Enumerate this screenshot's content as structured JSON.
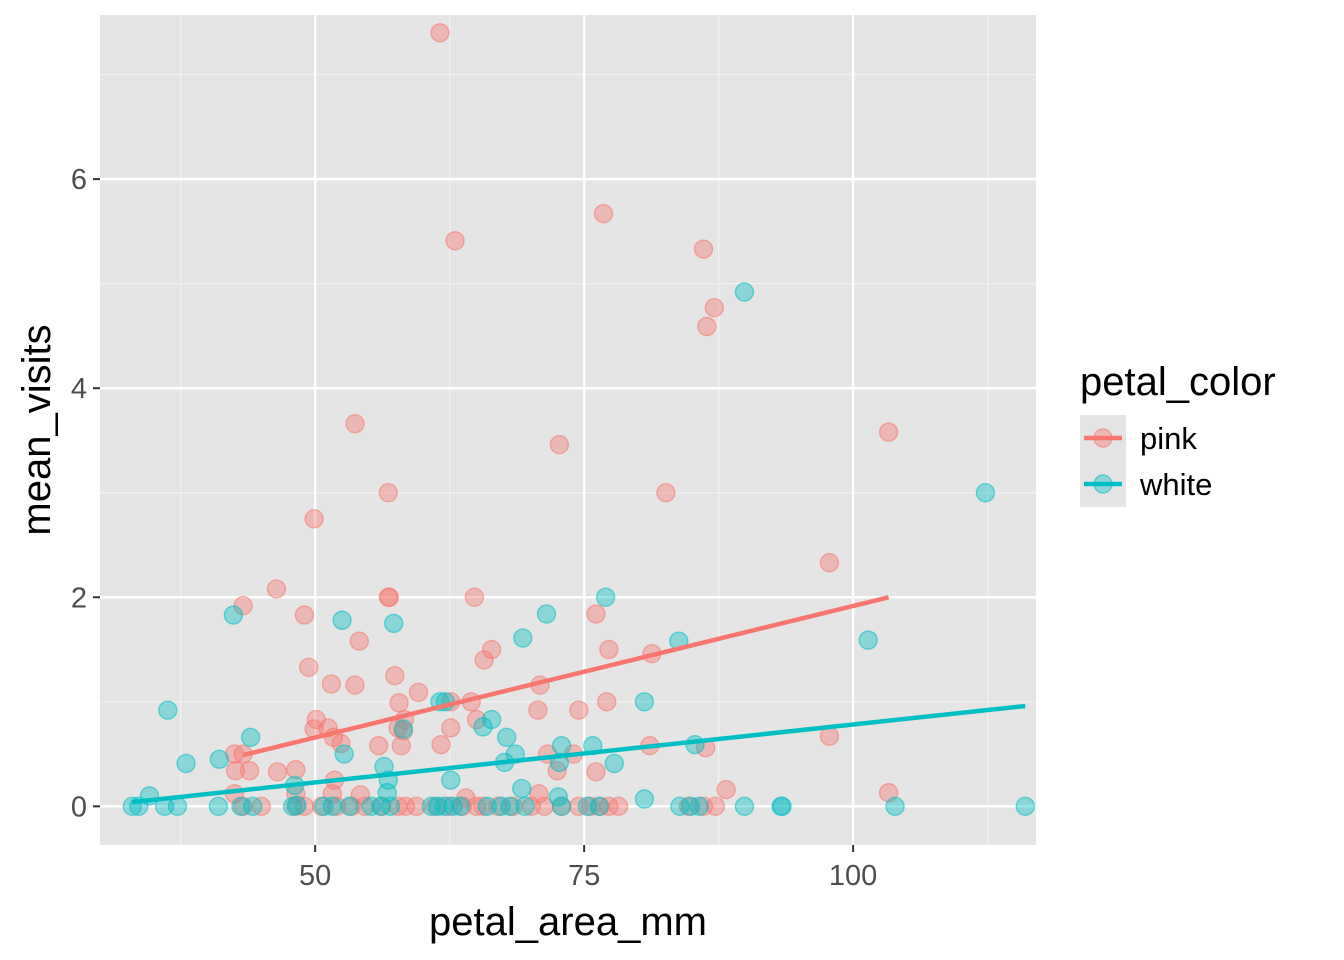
{
  "chart_data": {
    "type": "scatter",
    "xlabel": "petal_area_mm",
    "ylabel": "mean_visits",
    "xlim": [
      30,
      117
    ],
    "ylim": [
      -0.37,
      7.57
    ],
    "x_ticks": [
      50,
      75,
      100
    ],
    "y_ticks": [
      0,
      2,
      4,
      6
    ],
    "x_minor": [
      37.5,
      62.5,
      87.5,
      112.5
    ],
    "y_minor": [
      1,
      3,
      5,
      7
    ],
    "grid": true,
    "panel_background": "#e5e5e5",
    "legend": {
      "title": "petal_color",
      "placement": "right"
    },
    "series": [
      {
        "name": "pink",
        "color": "#f8766d",
        "points": [
          [
            61.6,
            7.4
          ],
          [
            76.8,
            5.67
          ],
          [
            63.0,
            5.41
          ],
          [
            86.1,
            5.33
          ],
          [
            87.1,
            4.77
          ],
          [
            86.4,
            4.59
          ],
          [
            53.7,
            3.66
          ],
          [
            103.3,
            3.58
          ],
          [
            72.7,
            3.46
          ],
          [
            56.8,
            3.0
          ],
          [
            82.6,
            3.0
          ],
          [
            49.9,
            2.75
          ],
          [
            97.8,
            2.33
          ],
          [
            46.4,
            2.08
          ],
          [
            56.8,
            2.0
          ],
          [
            56.9,
            2.0
          ],
          [
            64.8,
            2.0
          ],
          [
            43.3,
            1.92
          ],
          [
            76.1,
            1.84
          ],
          [
            49.0,
            1.83
          ],
          [
            54.1,
            1.58
          ],
          [
            77.3,
            1.5
          ],
          [
            66.4,
            1.5
          ],
          [
            81.3,
            1.46
          ],
          [
            65.7,
            1.4
          ],
          [
            49.4,
            1.33
          ],
          [
            57.4,
            1.25
          ],
          [
            51.5,
            1.17
          ],
          [
            53.7,
            1.16
          ],
          [
            70.9,
            1.16
          ],
          [
            59.6,
            1.09
          ],
          [
            62.6,
            1.0
          ],
          [
            64.5,
            1.0
          ],
          [
            77.1,
            1.0
          ],
          [
            57.8,
            0.99
          ],
          [
            70.7,
            0.92
          ],
          [
            74.5,
            0.92
          ],
          [
            50.1,
            0.83
          ],
          [
            58.3,
            0.83
          ],
          [
            65.0,
            0.83
          ],
          [
            51.2,
            0.75
          ],
          [
            57.7,
            0.75
          ],
          [
            62.6,
            0.75
          ],
          [
            49.9,
            0.74
          ],
          [
            58.2,
            0.72
          ],
          [
            51.7,
            0.66
          ],
          [
            97.8,
            0.67
          ],
          [
            52.4,
            0.6
          ],
          [
            55.9,
            0.58
          ],
          [
            61.7,
            0.59
          ],
          [
            58.0,
            0.58
          ],
          [
            81.1,
            0.58
          ],
          [
            86.3,
            0.56
          ],
          [
            42.5,
            0.5
          ],
          [
            43.3,
            0.5
          ],
          [
            71.6,
            0.5
          ],
          [
            74.0,
            0.5
          ],
          [
            48.2,
            0.35
          ],
          [
            46.5,
            0.33
          ],
          [
            42.6,
            0.34
          ],
          [
            72.5,
            0.34
          ],
          [
            76.1,
            0.33
          ],
          [
            43.9,
            0.34
          ],
          [
            51.8,
            0.25
          ],
          [
            88.2,
            0.16
          ],
          [
            103.3,
            0.13
          ],
          [
            42.5,
            0.12
          ],
          [
            48.2,
            0.12
          ],
          [
            51.6,
            0.12
          ],
          [
            54.2,
            0.11
          ],
          [
            70.8,
            0.12
          ],
          [
            64.0,
            0.08
          ],
          [
            48.2,
            0.0
          ],
          [
            43.3,
            0.0
          ],
          [
            45.0,
            0.0
          ],
          [
            49.0,
            0.0
          ],
          [
            50.6,
            0.0
          ],
          [
            52.0,
            0.0
          ],
          [
            53.4,
            0.0
          ],
          [
            54.6,
            0.0
          ],
          [
            56.2,
            0.0
          ],
          [
            57.7,
            0.0
          ],
          [
            58.4,
            0.0
          ],
          [
            59.4,
            0.0
          ],
          [
            61.2,
            0.0
          ],
          [
            62.4,
            0.0
          ],
          [
            63.7,
            0.0
          ],
          [
            65.0,
            0.0
          ],
          [
            65.6,
            0.0
          ],
          [
            67.0,
            0.0
          ],
          [
            68.4,
            0.0
          ],
          [
            70.1,
            0.0
          ],
          [
            71.3,
            0.0
          ],
          [
            72.9,
            0.0
          ],
          [
            74.5,
            0.0
          ],
          [
            75.6,
            0.0
          ],
          [
            76.5,
            0.0
          ],
          [
            77.3,
            0.0
          ],
          [
            78.2,
            0.0
          ],
          [
            84.7,
            0.0
          ],
          [
            86.1,
            0.0
          ],
          [
            87.2,
            0.0
          ]
        ],
        "trend": {
          "x": [
            43.3,
            103.3
          ],
          "y": [
            0.49,
            2.0
          ]
        }
      },
      {
        "name": "white",
        "color": "#00bfc4",
        "points": [
          [
            89.9,
            4.92
          ],
          [
            112.3,
            3.0
          ],
          [
            77.0,
            2.0
          ],
          [
            71.5,
            1.84
          ],
          [
            42.4,
            1.83
          ],
          [
            52.5,
            1.78
          ],
          [
            57.3,
            1.75
          ],
          [
            69.3,
            1.61
          ],
          [
            83.8,
            1.58
          ],
          [
            101.4,
            1.59
          ],
          [
            61.6,
            1.0
          ],
          [
            62.1,
            1.0
          ],
          [
            80.6,
            1.0
          ],
          [
            36.3,
            0.92
          ],
          [
            66.4,
            0.83
          ],
          [
            65.6,
            0.76
          ],
          [
            58.2,
            0.74
          ],
          [
            67.8,
            0.66
          ],
          [
            44.0,
            0.66
          ],
          [
            72.9,
            0.58
          ],
          [
            75.8,
            0.58
          ],
          [
            85.3,
            0.59
          ],
          [
            52.7,
            0.5
          ],
          [
            68.6,
            0.5
          ],
          [
            41.1,
            0.45
          ],
          [
            38.0,
            0.41
          ],
          [
            72.7,
            0.42
          ],
          [
            77.8,
            0.41
          ],
          [
            67.6,
            0.42
          ],
          [
            56.4,
            0.38
          ],
          [
            56.8,
            0.25
          ],
          [
            62.6,
            0.25
          ],
          [
            48.1,
            0.2
          ],
          [
            69.2,
            0.17
          ],
          [
            56.7,
            0.13
          ],
          [
            72.6,
            0.09
          ],
          [
            80.6,
            0.07
          ],
          [
            48.3,
            0.01
          ],
          [
            34.6,
            0.1
          ],
          [
            33.0,
            0.0
          ],
          [
            33.6,
            0.0
          ],
          [
            36.0,
            0.0
          ],
          [
            37.2,
            0.0
          ],
          [
            41.0,
            0.0
          ],
          [
            43.1,
            0.0
          ],
          [
            44.2,
            0.0
          ],
          [
            47.9,
            0.0
          ],
          [
            50.8,
            0.0
          ],
          [
            51.6,
            0.0
          ],
          [
            53.2,
            0.0
          ],
          [
            55.2,
            0.0
          ],
          [
            56.1,
            0.0
          ],
          [
            57.0,
            0.0
          ],
          [
            60.8,
            0.0
          ],
          [
            61.4,
            0.0
          ],
          [
            62.0,
            0.0
          ],
          [
            62.8,
            0.0
          ],
          [
            63.5,
            0.0
          ],
          [
            66.0,
            0.0
          ],
          [
            67.3,
            0.0
          ],
          [
            68.1,
            0.0
          ],
          [
            69.5,
            0.0
          ],
          [
            72.9,
            0.0
          ],
          [
            75.3,
            0.0
          ],
          [
            76.4,
            0.0
          ],
          [
            83.9,
            0.0
          ],
          [
            84.9,
            0.0
          ],
          [
            85.7,
            0.0
          ],
          [
            89.9,
            0.0
          ],
          [
            93.3,
            0.0
          ],
          [
            93.4,
            0.0
          ],
          [
            103.9,
            0.0
          ],
          [
            116.0,
            0.0
          ]
        ],
        "trend": {
          "x": [
            33.0,
            116.0
          ],
          "y": [
            0.04,
            0.96
          ]
        }
      }
    ]
  }
}
